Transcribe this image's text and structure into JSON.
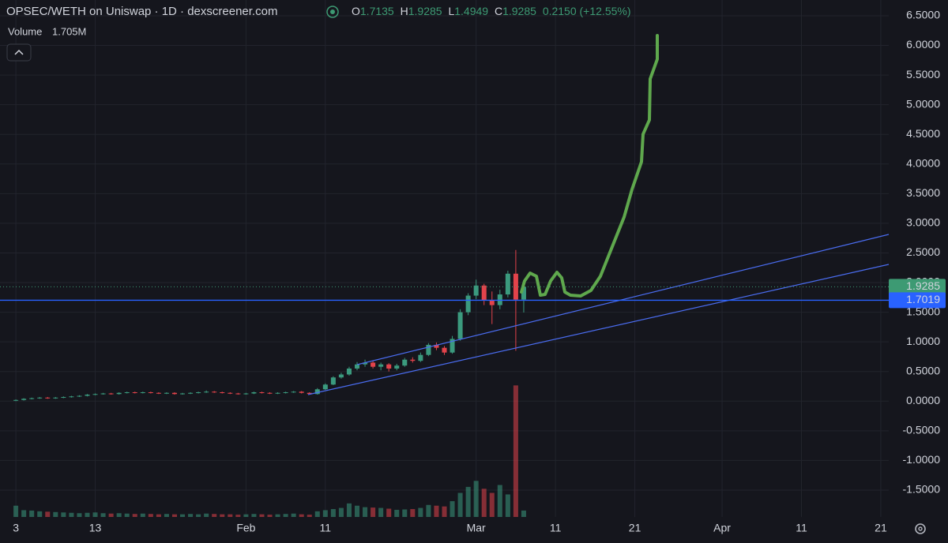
{
  "header": {
    "title": "OPSEC/WETH on Uniswap · 1D · dexscreener.com",
    "o": "O",
    "h": "H",
    "l": "L",
    "c": "C",
    "change": "0.2150 (+12.55%)",
    "volume_label": "Volume",
    "volume_value": "1.705M"
  },
  "chart_data": {
    "type": "candlestick",
    "x": [
      0,
      1,
      2,
      3,
      4,
      5,
      6,
      7,
      8,
      9,
      10,
      11,
      12,
      13,
      14,
      15,
      16,
      17,
      18,
      19,
      20,
      21,
      22,
      23,
      24,
      25,
      26,
      27,
      28,
      29,
      30,
      31,
      32,
      33,
      34,
      35,
      36,
      37,
      38,
      39,
      40,
      41,
      42,
      43,
      44,
      45,
      46,
      47,
      48,
      49,
      50,
      51,
      52,
      53,
      54,
      55,
      56,
      57,
      58,
      59,
      60,
      61,
      62,
      63,
      64
    ],
    "open": [
      0.01,
      0.02,
      0.04,
      0.05,
      0.06,
      0.05,
      0.06,
      0.07,
      0.08,
      0.09,
      0.11,
      0.12,
      0.13,
      0.12,
      0.14,
      0.15,
      0.14,
      0.15,
      0.14,
      0.13,
      0.14,
      0.12,
      0.13,
      0.14,
      0.15,
      0.16,
      0.15,
      0.14,
      0.13,
      0.12,
      0.13,
      0.15,
      0.14,
      0.13,
      0.14,
      0.15,
      0.16,
      0.14,
      0.12,
      0.2,
      0.28,
      0.4,
      0.45,
      0.55,
      0.62,
      0.65,
      0.58,
      0.62,
      0.55,
      0.6,
      0.7,
      0.68,
      0.78,
      0.95,
      0.9,
      0.82,
      1.05,
      1.5,
      1.78,
      1.95,
      1.7,
      1.62,
      1.8,
      2.15,
      1.7135
    ],
    "high": [
      0.03,
      0.05,
      0.06,
      0.07,
      0.07,
      0.07,
      0.08,
      0.09,
      0.1,
      0.12,
      0.13,
      0.14,
      0.14,
      0.15,
      0.16,
      0.16,
      0.16,
      0.16,
      0.15,
      0.15,
      0.15,
      0.14,
      0.15,
      0.16,
      0.18,
      0.17,
      0.16,
      0.15,
      0.14,
      0.14,
      0.16,
      0.16,
      0.15,
      0.15,
      0.16,
      0.17,
      0.17,
      0.15,
      0.22,
      0.3,
      0.42,
      0.48,
      0.58,
      0.66,
      0.7,
      0.68,
      0.65,
      0.64,
      0.63,
      0.73,
      0.74,
      0.82,
      0.98,
      0.99,
      0.93,
      1.1,
      1.55,
      1.82,
      2.05,
      1.98,
      1.85,
      1.88,
      2.2,
      2.55,
      1.9285
    ],
    "low": [
      0.0,
      0.01,
      0.03,
      0.04,
      0.04,
      0.04,
      0.05,
      0.06,
      0.07,
      0.08,
      0.1,
      0.11,
      0.11,
      0.11,
      0.13,
      0.13,
      0.13,
      0.13,
      0.12,
      0.12,
      0.11,
      0.11,
      0.12,
      0.13,
      0.14,
      0.14,
      0.13,
      0.12,
      0.11,
      0.11,
      0.12,
      0.13,
      0.12,
      0.12,
      0.13,
      0.14,
      0.13,
      0.11,
      0.11,
      0.19,
      0.27,
      0.38,
      0.43,
      0.52,
      0.58,
      0.55,
      0.52,
      0.5,
      0.52,
      0.58,
      0.65,
      0.66,
      0.76,
      0.86,
      0.78,
      0.8,
      1.02,
      1.45,
      1.72,
      1.62,
      1.3,
      1.55,
      1.75,
      0.85,
      1.4949
    ],
    "close": [
      0.02,
      0.04,
      0.05,
      0.06,
      0.05,
      0.06,
      0.07,
      0.08,
      0.09,
      0.11,
      0.12,
      0.13,
      0.12,
      0.14,
      0.15,
      0.14,
      0.15,
      0.14,
      0.13,
      0.14,
      0.12,
      0.13,
      0.14,
      0.15,
      0.16,
      0.15,
      0.14,
      0.13,
      0.12,
      0.13,
      0.15,
      0.14,
      0.13,
      0.14,
      0.15,
      0.16,
      0.14,
      0.12,
      0.2,
      0.28,
      0.4,
      0.45,
      0.55,
      0.62,
      0.65,
      0.58,
      0.62,
      0.55,
      0.6,
      0.7,
      0.68,
      0.78,
      0.95,
      0.9,
      0.82,
      1.05,
      1.5,
      1.78,
      1.95,
      1.7,
      1.62,
      1.8,
      2.15,
      1.7135,
      1.9285
    ],
    "volume": [
      3000000,
      1800000,
      1700000,
      1500000,
      1400000,
      1300000,
      1200000,
      1100000,
      1000000,
      1100000,
      1200000,
      1000000,
      900000,
      1000000,
      900000,
      800000,
      900000,
      800000,
      700000,
      800000,
      700000,
      700000,
      800000,
      700000,
      900000,
      800000,
      700000,
      700000,
      600000,
      700000,
      800000,
      700000,
      600000,
      700000,
      800000,
      900000,
      700000,
      600000,
      1500000,
      1800000,
      2100000,
      2400000,
      3600000,
      3000000,
      2600000,
      2500000,
      2400000,
      2200000,
      1900000,
      2000000,
      2100000,
      2400000,
      3200000,
      3000000,
      2800000,
      4200000,
      6400000,
      8000000,
      9600000,
      7500000,
      6400000,
      8500000,
      6000000,
      35000000,
      1705000
    ],
    "ylim": [
      -1.953,
      6.766
    ],
    "vlim": [
      0,
      42000000
    ],
    "xlim": [
      -2,
      110
    ],
    "yticks": [
      {
        "value": 6.5,
        "label": "6.5000"
      },
      {
        "value": 6,
        "label": "6.0000"
      },
      {
        "value": 5.5,
        "label": "5.5000"
      },
      {
        "value": 5,
        "label": "5.0000"
      },
      {
        "value": 4.5,
        "label": "4.5000"
      },
      {
        "value": 4,
        "label": "4.0000"
      },
      {
        "value": 3.5,
        "label": "3.5000"
      },
      {
        "value": 3,
        "label": "3.0000"
      },
      {
        "value": 2.5,
        "label": "2.5000"
      },
      {
        "value": 2,
        "label": "2.0000"
      },
      {
        "value": 1.5,
        "label": "1.5000"
      },
      {
        "value": 1,
        "label": "1.0000"
      },
      {
        "value": 0.5,
        "label": "0.5000"
      },
      {
        "value": 0,
        "label": "0.0000"
      },
      {
        "value": -0.5,
        "label": "-0.5000"
      },
      {
        "value": -1,
        "label": "-1.0000"
      },
      {
        "value": -1.5,
        "label": "-1.5000"
      }
    ],
    "xticks": [
      {
        "value": 0,
        "label": "3"
      },
      {
        "value": 10,
        "label": "13"
      },
      {
        "value": 29,
        "label": "Feb"
      },
      {
        "value": 39,
        "label": "11"
      },
      {
        "value": 58,
        "label": "Mar"
      },
      {
        "value": 68,
        "label": "11"
      },
      {
        "value": 78,
        "label": "21"
      },
      {
        "value": 89,
        "label": "Apr"
      },
      {
        "value": 99,
        "label": "11"
      },
      {
        "value": 109,
        "label": "21"
      }
    ],
    "grid": true,
    "up_color": "#3b9a7e",
    "down_color": "#e3434b",
    "price_lines": [
      {
        "value": 1.9285,
        "color": "#3d9a73",
        "style": "dotted"
      },
      {
        "value": 1.7019,
        "color": "#2962ff",
        "style": "solid"
      }
    ]
  }
}
